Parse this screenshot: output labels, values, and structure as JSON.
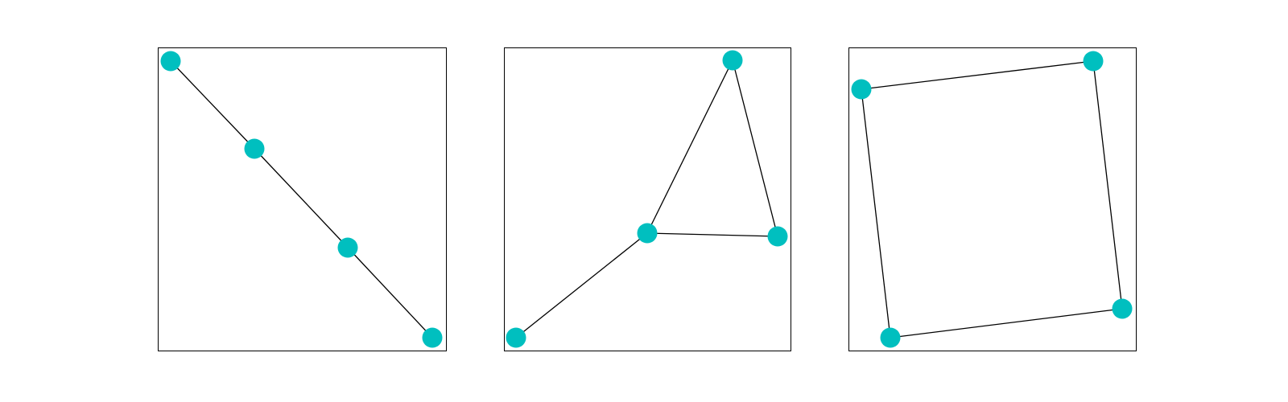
{
  "node_color": "#00bfbf",
  "graphs": [
    {
      "edges": [
        [
          0,
          1
        ],
        [
          1,
          2
        ],
        [
          2,
          3
        ]
      ]
    },
    {
      "edges": [
        [
          0,
          1
        ],
        [
          1,
          2
        ],
        [
          1,
          3
        ],
        [
          2,
          3
        ]
      ]
    },
    {
      "edges": [
        [
          0,
          1
        ],
        [
          1,
          2
        ],
        [
          2,
          3
        ],
        [
          3,
          0
        ]
      ]
    }
  ]
}
